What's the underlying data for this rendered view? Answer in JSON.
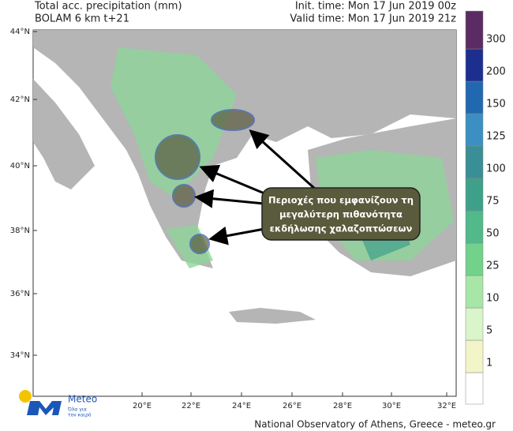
{
  "header": {
    "left_line1": "Total acc. precipitation (mm)",
    "left_line2": "BOLAM 6 km t+21",
    "right_line1": "Init. time: Mon 17 Jun 2019 00z",
    "right_line2": "Valid time: Mon 17 Jun 2019 21z"
  },
  "axes": {
    "latitudes": [
      "44°N",
      "42°N",
      "40°N",
      "38°N",
      "36°N",
      "34°N"
    ],
    "longitudes": [
      "20°E",
      "22°E",
      "24°E",
      "26°E",
      "28°E",
      "30°E",
      "32°E"
    ]
  },
  "legend": {
    "levels": [
      1,
      5,
      10,
      25,
      50,
      75,
      100,
      125,
      150,
      200,
      300
    ],
    "colors": [
      "#ffffff",
      "#f2f5c8",
      "#d9f5c9",
      "#a8e6a8",
      "#72d18a",
      "#52b98a",
      "#3fa08a",
      "#3a8f96",
      "#3c8fc2",
      "#2268b0",
      "#1c2f8f",
      "#5b2b63"
    ]
  },
  "callout": {
    "lines": [
      "Περιοχές που εμφανίζουν τη",
      "μεγαλύτερη πιθανότητα",
      "εκδήλωσης χαλαζοπτώσεων"
    ]
  },
  "logo": {
    "name": "Meteo",
    "tagline_line1": "Όλα για",
    "tagline_line2": "τον καιρό"
  },
  "footer": "National Observatory of Athens, Greece - meteo.gr"
}
